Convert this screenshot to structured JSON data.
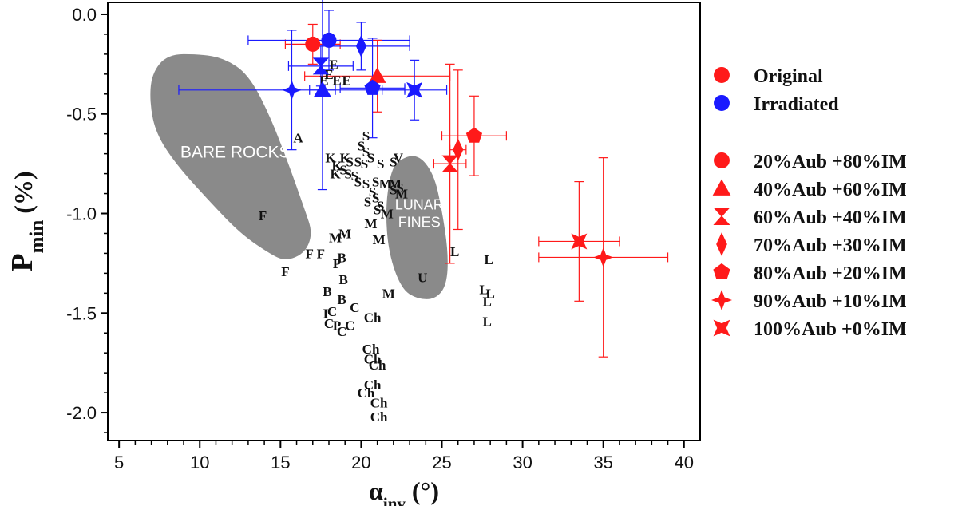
{
  "chart_data": {
    "type": "scatter",
    "title": "",
    "xlabel": "α",
    "xlabel_sub": "inv",
    "xlabel_unit": " (°)",
    "ylabel": "P",
    "ylabel_sub": "min",
    "ylabel_unit": " (%)",
    "xlim": [
      4.3,
      41
    ],
    "ylim": [
      -2.14,
      0.06
    ],
    "xticks": [
      5,
      10,
      15,
      20,
      25,
      30,
      35,
      40
    ],
    "xtick_labels": [
      "5",
      "10",
      "15",
      "20",
      "25",
      "30",
      "35",
      "40"
    ],
    "yticks": [
      0,
      -0.5,
      -1,
      -1.5,
      -2
    ],
    "ytick_labels": [
      "0.0",
      "-0.5",
      "-1.0",
      "-1.5",
      "-2.0"
    ],
    "grid": false,
    "legend_position": "right",
    "colors": {
      "original": "#ff1a1a",
      "irradiated": "#1a1aff",
      "region": "#8a8a8a"
    },
    "legend": {
      "state_entries": [
        {
          "label": "Original",
          "color": "#ff1a1a"
        },
        {
          "label": "Irradiated",
          "color": "#1a1aff"
        }
      ],
      "marker_entries": [
        {
          "label": "20%Aub +80%IM",
          "marker": "circle"
        },
        {
          "label": "40%Aub +60%IM",
          "marker": "triangle"
        },
        {
          "label": "60%Aub +40%IM",
          "marker": "hourglass"
        },
        {
          "label": "70%Aub +30%IM",
          "marker": "thin-diamond"
        },
        {
          "label": "80%Aub +20%IM",
          "marker": "pentagon"
        },
        {
          "label": "90%Aub +10%IM",
          "marker": "star4"
        },
        {
          "label": "100%Aub +0%IM",
          "marker": "bowtie"
        }
      ]
    },
    "series": [
      {
        "name": "20%Aub +80%IM",
        "state": "Original",
        "marker": "circle",
        "x": 17.0,
        "y": -0.15,
        "xerr": 1.7,
        "yerr": 0.1
      },
      {
        "name": "20%Aub +80%IM",
        "state": "Irradiated",
        "marker": "circle",
        "x": 18.0,
        "y": -0.13,
        "xerr": 5.0,
        "yerr": 0.15
      },
      {
        "name": "40%Aub +60%IM",
        "state": "Original",
        "marker": "triangle",
        "x": 21.0,
        "y": -0.31,
        "xerr": 4.5,
        "yerr": 0.18
      },
      {
        "name": "40%Aub +60%IM",
        "state": "Irradiated",
        "marker": "triangle",
        "x": 17.6,
        "y": -0.38,
        "xerr": 0.8,
        "yerr": 0.5
      },
      {
        "name": "60%Aub +40%IM",
        "state": "Original",
        "marker": "hourglass",
        "x": 25.5,
        "y": -0.75,
        "xerr": 1.0,
        "yerr": 0.5
      },
      {
        "name": "60%Aub +40%IM",
        "state": "Irradiated",
        "marker": "hourglass",
        "x": 17.5,
        "y": -0.26,
        "xerr": 2.0,
        "yerr": 0.1
      },
      {
        "name": "70%Aub +30%IM",
        "state": "Original",
        "marker": "thin-diamond",
        "x": 26.0,
        "y": -0.68,
        "xerr": 0.5,
        "yerr": 0.4
      },
      {
        "name": "70%Aub +30%IM",
        "state": "Irradiated",
        "marker": "thin-diamond",
        "x": 20.0,
        "y": -0.16,
        "xerr": 3.0,
        "yerr": 0.12
      },
      {
        "name": "80%Aub +20%IM",
        "state": "Original",
        "marker": "pentagon",
        "x": 27.0,
        "y": -0.61,
        "xerr": 2.0,
        "yerr": 0.2
      },
      {
        "name": "80%Aub +20%IM",
        "state": "Irradiated",
        "marker": "pentagon",
        "x": 20.7,
        "y": -0.37,
        "xerr": 2.0,
        "yerr": 0.25
      },
      {
        "name": "90%Aub +10%IM",
        "state": "Original",
        "marker": "star4",
        "x": 35.0,
        "y": -1.22,
        "xerr": 4.0,
        "yerr": 0.5
      },
      {
        "name": "90%Aub +10%IM",
        "state": "Irradiated",
        "marker": "star4",
        "x": 15.7,
        "y": -0.38,
        "xerr": 7.0,
        "yerr": 0.3
      },
      {
        "name": "100%Aub +0%IM",
        "state": "Original",
        "marker": "bowtie",
        "x": 33.5,
        "y": -1.14,
        "xerr": 2.5,
        "yerr": 0.3
      },
      {
        "name": "100%Aub +0%IM",
        "state": "Irradiated",
        "marker": "bowtie",
        "x": 23.3,
        "y": -0.38,
        "xerr": 2.0,
        "yerr": 0.15
      }
    ],
    "regions": [
      {
        "label": "BARE ROCKS",
        "polygon": [
          [
            7.0,
            -0.3
          ],
          [
            8.0,
            -0.2
          ],
          [
            10.0,
            -0.2
          ],
          [
            11.5,
            -0.22
          ],
          [
            13.0,
            -0.3
          ],
          [
            14.3,
            -0.5
          ],
          [
            15.5,
            -0.75
          ],
          [
            16.5,
            -0.98
          ],
          [
            17.0,
            -1.1
          ],
          [
            16.5,
            -1.2
          ],
          [
            15.3,
            -1.24
          ],
          [
            14.3,
            -1.2
          ],
          [
            12.5,
            -1.1
          ],
          [
            10.5,
            -0.93
          ],
          [
            8.5,
            -0.75
          ],
          [
            7.3,
            -0.6
          ],
          [
            6.9,
            -0.45
          ]
        ]
      },
      {
        "label": "LUNAR FINES",
        "polygon": [
          [
            22.3,
            -0.73
          ],
          [
            23.5,
            -0.7
          ],
          [
            24.5,
            -0.8
          ],
          [
            25.0,
            -0.98
          ],
          [
            25.4,
            -1.2
          ],
          [
            25.3,
            -1.36
          ],
          [
            24.6,
            -1.43
          ],
          [
            23.5,
            -1.43
          ],
          [
            22.5,
            -1.38
          ],
          [
            21.7,
            -1.2
          ],
          [
            21.5,
            -0.98
          ],
          [
            21.8,
            -0.8
          ]
        ]
      }
    ],
    "class_labels": [
      {
        "t": "E",
        "x": 18.3,
        "y": -0.25
      },
      {
        "t": "E",
        "x": 18.0,
        "y": -0.3
      },
      {
        "t": "E",
        "x": 17.7,
        "y": -0.33
      },
      {
        "t": "E",
        "x": 18.5,
        "y": -0.33
      },
      {
        "t": "E",
        "x": 19.1,
        "y": -0.33
      },
      {
        "t": "A",
        "x": 16.1,
        "y": -0.62
      },
      {
        "t": "S",
        "x": 20.3,
        "y": -0.61
      },
      {
        "t": "S",
        "x": 20.0,
        "y": -0.66
      },
      {
        "t": "S",
        "x": 20.3,
        "y": -0.69
      },
      {
        "t": "S",
        "x": 20.6,
        "y": -0.72
      },
      {
        "t": "K",
        "x": 18.1,
        "y": -0.72
      },
      {
        "t": "K",
        "x": 19.0,
        "y": -0.72
      },
      {
        "t": "S",
        "x": 19.3,
        "y": -0.74
      },
      {
        "t": "S",
        "x": 19.8,
        "y": -0.74
      },
      {
        "t": "S",
        "x": 20.2,
        "y": -0.75
      },
      {
        "t": "S",
        "x": 21.2,
        "y": -0.75
      },
      {
        "t": "S",
        "x": 22.0,
        "y": -0.74
      },
      {
        "t": "V",
        "x": 22.3,
        "y": -0.72
      },
      {
        "t": "K",
        "x": 18.5,
        "y": -0.76
      },
      {
        "t": "S",
        "x": 18.9,
        "y": -0.78
      },
      {
        "t": "K",
        "x": 18.4,
        "y": -0.8
      },
      {
        "t": "S",
        "x": 19.2,
        "y": -0.8
      },
      {
        "t": "S",
        "x": 19.6,
        "y": -0.81
      },
      {
        "t": "S",
        "x": 19.8,
        "y": -0.84
      },
      {
        "t": "S",
        "x": 20.3,
        "y": -0.85
      },
      {
        "t": "S",
        "x": 20.9,
        "y": -0.84
      },
      {
        "t": "M",
        "x": 21.5,
        "y": -0.85
      },
      {
        "t": "S",
        "x": 22.0,
        "y": -0.88
      },
      {
        "t": "M",
        "x": 22.1,
        "y": -0.85
      },
      {
        "t": "S",
        "x": 22.4,
        "y": -0.87
      },
      {
        "t": "S",
        "x": 20.7,
        "y": -0.89
      },
      {
        "t": "S",
        "x": 20.9,
        "y": -0.92
      },
      {
        "t": "S",
        "x": 20.4,
        "y": -0.94
      },
      {
        "t": "S",
        "x": 21.2,
        "y": -0.96
      },
      {
        "t": "M",
        "x": 22.5,
        "y": -0.9
      },
      {
        "t": "S",
        "x": 21.0,
        "y": -0.98
      },
      {
        "t": "M",
        "x": 21.6,
        "y": -1.0
      },
      {
        "t": "M",
        "x": 20.6,
        "y": -1.05
      },
      {
        "t": "M",
        "x": 19.0,
        "y": -1.1
      },
      {
        "t": "M",
        "x": 18.4,
        "y": -1.12
      },
      {
        "t": "M",
        "x": 21.1,
        "y": -1.13
      },
      {
        "t": "M",
        "x": 21.7,
        "y": -1.4
      },
      {
        "t": "U",
        "x": 23.8,
        "y": -1.32
      },
      {
        "t": "F",
        "x": 13.9,
        "y": -1.01
      },
      {
        "t": "F",
        "x": 16.8,
        "y": -1.2
      },
      {
        "t": "F",
        "x": 17.5,
        "y": -1.2
      },
      {
        "t": "F",
        "x": 15.3,
        "y": -1.29
      },
      {
        "t": "P",
        "x": 18.5,
        "y": -1.25
      },
      {
        "t": "B",
        "x": 18.8,
        "y": -1.22
      },
      {
        "t": "B",
        "x": 18.9,
        "y": -1.33
      },
      {
        "t": "B",
        "x": 17.9,
        "y": -1.39
      },
      {
        "t": "B",
        "x": 18.8,
        "y": -1.43
      },
      {
        "t": "I",
        "x": 17.8,
        "y": -1.5
      },
      {
        "t": "C",
        "x": 18.2,
        "y": -1.49
      },
      {
        "t": "C",
        "x": 19.6,
        "y": -1.47
      },
      {
        "t": "Ch",
        "x": 20.7,
        "y": -1.52
      },
      {
        "t": "C",
        "x": 18.0,
        "y": -1.55
      },
      {
        "t": "P",
        "x": 18.5,
        "y": -1.56
      },
      {
        "t": "C",
        "x": 18.8,
        "y": -1.59
      },
      {
        "t": "C",
        "x": 19.3,
        "y": -1.56
      },
      {
        "t": "Ch",
        "x": 20.6,
        "y": -1.68
      },
      {
        "t": "Ch",
        "x": 20.7,
        "y": -1.73
      },
      {
        "t": "Ch",
        "x": 21.0,
        "y": -1.76
      },
      {
        "t": "Ch",
        "x": 20.7,
        "y": -1.86
      },
      {
        "t": "Ch",
        "x": 20.3,
        "y": -1.9
      },
      {
        "t": "Ch",
        "x": 21.1,
        "y": -1.95
      },
      {
        "t": "Ch",
        "x": 21.1,
        "y": -2.02
      },
      {
        "t": "L",
        "x": 25.8,
        "y": -1.19
      },
      {
        "t": "L",
        "x": 27.9,
        "y": -1.23
      },
      {
        "t": "L",
        "x": 27.6,
        "y": -1.38
      },
      {
        "t": "L",
        "x": 28.0,
        "y": -1.4
      },
      {
        "t": "L",
        "x": 27.8,
        "y": -1.44
      },
      {
        "t": "L",
        "x": 27.8,
        "y": -1.54
      }
    ],
    "annotations": [
      "BARE ROCKS",
      "LUNAR FINES"
    ]
  }
}
